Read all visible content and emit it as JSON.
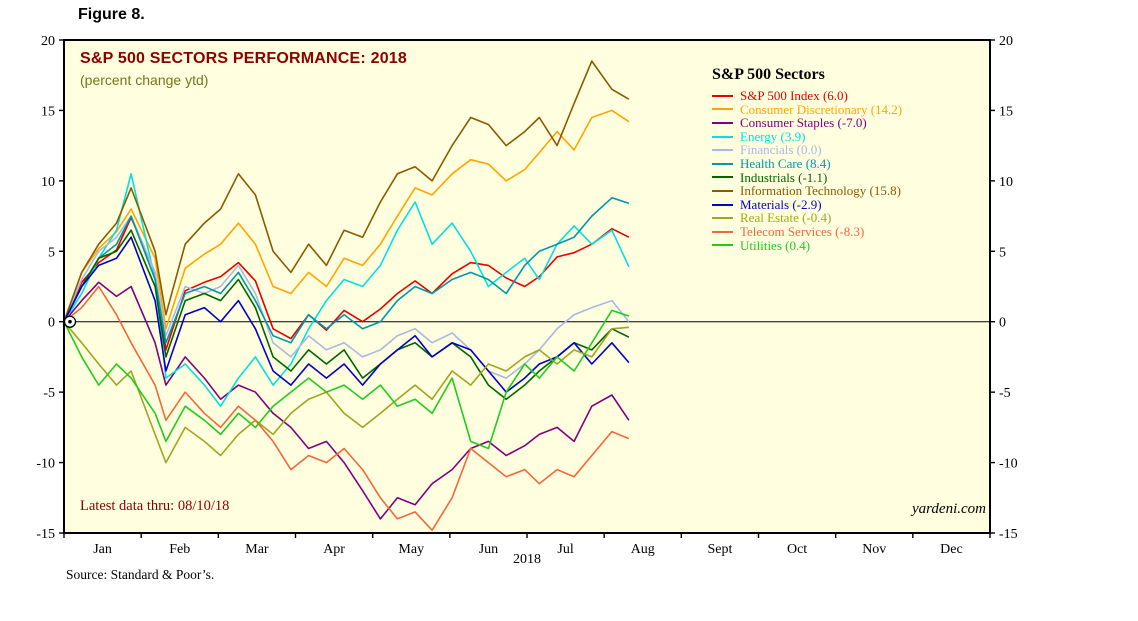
{
  "figure": {
    "label": "Figure 8."
  },
  "annotations": {
    "latest_data": "Latest data thru: 08/10/18",
    "watermark": "yardeni.com"
  },
  "source": {
    "text": "Source: Standard & Poor’s."
  },
  "colors": {
    "title": "#8B0000",
    "subtitle": "#76761A",
    "latest_data": "#8B0000",
    "plot_bg": "#FFFFDF"
  },
  "chart_data": {
    "type": "line",
    "title": "S&P 500 SECTORS PERFORMANCE: 2018",
    "subtitle": "(percent change ytd)",
    "legend_title": "S&P 500 Sectors",
    "x_axis_year": "2018",
    "ylim": [
      -15,
      20
    ],
    "yticks": [
      -15,
      -10,
      -5,
      0,
      5,
      10,
      15,
      20
    ],
    "x_months": [
      "Jan",
      "Feb",
      "Mar",
      "Apr",
      "May",
      "Jun",
      "Jul",
      "Aug",
      "Sept",
      "Oct",
      "Nov",
      "Dec"
    ],
    "x_range_months": [
      0,
      12
    ],
    "x": [
      0,
      0.23,
      0.45,
      0.68,
      0.87,
      1.18,
      1.32,
      1.57,
      1.82,
      2.03,
      2.26,
      2.48,
      2.71,
      2.94,
      3.17,
      3.4,
      3.63,
      3.87,
      4.1,
      4.32,
      4.55,
      4.77,
      5.03,
      5.27,
      5.5,
      5.73,
      5.97,
      6.16,
      6.39,
      6.61,
      6.84,
      7.1,
      7.32
    ],
    "series": [
      {
        "id": "sp500-index",
        "name": "S&P 500 Index",
        "label": "S&P 500 Index (6.0)",
        "final": 6.0,
        "color": "#E60000",
        "values": [
          0,
          2.8,
          4.2,
          5.1,
          7.4,
          3.5,
          -2.0,
          2.2,
          2.8,
          3.2,
          4.2,
          2.9,
          -0.5,
          -1.2,
          0.5,
          -0.6,
          0.8,
          0.0,
          0.9,
          2.0,
          2.9,
          2.0,
          3.4,
          4.2,
          4.0,
          3.1,
          2.5,
          3.2,
          4.6,
          4.9,
          5.5,
          6.6,
          6.0
        ]
      },
      {
        "id": "consumer-discretionary",
        "name": "Consumer Discretionary",
        "label": "Consumer Discretionary (14.2)",
        "final": 14.2,
        "color": "#FFA500",
        "values": [
          0,
          3.5,
          5.2,
          6.4,
          8.0,
          4.5,
          -0.5,
          3.8,
          4.8,
          5.5,
          7.0,
          5.5,
          2.5,
          2.0,
          3.5,
          2.5,
          4.5,
          4.0,
          5.5,
          7.5,
          9.5,
          9.0,
          10.5,
          11.5,
          11.2,
          10.0,
          10.8,
          12.0,
          13.5,
          12.2,
          14.5,
          15.0,
          14.2
        ]
      },
      {
        "id": "consumer-staples",
        "name": "Consumer Staples",
        "label": "Consumer Staples (-7.0)",
        "final": -7.0,
        "color": "#800080",
        "values": [
          0,
          1.5,
          2.8,
          1.8,
          2.5,
          -1.5,
          -4.5,
          -2.5,
          -4.0,
          -5.5,
          -4.5,
          -5.0,
          -6.5,
          -7.5,
          -9.0,
          -8.5,
          -10.0,
          -12.0,
          -14.0,
          -12.5,
          -13.0,
          -11.5,
          -10.5,
          -9.0,
          -8.5,
          -9.5,
          -8.8,
          -8.0,
          -7.5,
          -8.5,
          -6.0,
          -5.2,
          -7.0
        ]
      },
      {
        "id": "energy",
        "name": "Energy",
        "label": "Energy (3.9)",
        "final": 3.9,
        "color": "#00E0E0",
        "values": [
          0,
          2.0,
          4.5,
          6.5,
          10.5,
          3.0,
          -4.0,
          -3.0,
          -4.5,
          -6.0,
          -4.0,
          -2.5,
          -4.5,
          -3.0,
          -0.5,
          1.5,
          3.0,
          2.5,
          4.0,
          6.5,
          8.5,
          5.5,
          7.0,
          5.0,
          2.5,
          3.5,
          4.5,
          3.0,
          5.5,
          6.8,
          5.5,
          6.5,
          3.9
        ]
      },
      {
        "id": "financials",
        "name": "Financials",
        "label": "Financials (0.0)",
        "final": 0.0,
        "color": "#A9B8E6",
        "values": [
          0,
          3.0,
          5.0,
          6.0,
          7.5,
          3.5,
          -1.0,
          2.5,
          2.0,
          2.5,
          4.0,
          2.0,
          -1.5,
          -2.5,
          -1.0,
          -2.0,
          -1.5,
          -2.5,
          -2.0,
          -1.0,
          -0.5,
          -1.5,
          -0.8,
          -2.0,
          -3.5,
          -4.0,
          -3.0,
          -2.0,
          -0.5,
          0.5,
          1.0,
          1.5,
          0.0
        ]
      },
      {
        "id": "health-care",
        "name": "Health Care",
        "label": "Health Care (8.4)",
        "final": 8.4,
        "color": "#0097AB",
        "values": [
          0,
          2.5,
          4.5,
          5.5,
          7.5,
          3.0,
          -1.5,
          2.0,
          2.5,
          2.0,
          3.5,
          1.5,
          -1.0,
          -1.5,
          0.5,
          -0.5,
          0.5,
          -0.5,
          0.0,
          1.5,
          2.5,
          2.0,
          3.0,
          3.5,
          3.0,
          2.0,
          4.0,
          5.0,
          5.5,
          6.0,
          7.5,
          8.8,
          8.4
        ]
      },
      {
        "id": "industrials",
        "name": "Industrials",
        "label": "Industrials (-1.1)",
        "final": -1.1,
        "color": "#006400",
        "values": [
          0,
          2.5,
          4.5,
          5.0,
          6.5,
          2.5,
          -2.5,
          1.5,
          2.0,
          1.5,
          3.0,
          1.0,
          -2.5,
          -3.5,
          -2.0,
          -3.0,
          -2.0,
          -4.0,
          -3.0,
          -2.0,
          -1.5,
          -2.5,
          -1.5,
          -2.5,
          -4.5,
          -5.5,
          -4.5,
          -3.5,
          -2.5,
          -1.5,
          -2.0,
          -0.5,
          -1.1
        ]
      },
      {
        "id": "information-technology",
        "name": "Information Technology",
        "label": "Information Technology (15.8)",
        "final": 15.8,
        "color": "#8B5A00",
        "values": [
          0,
          3.5,
          5.5,
          7.0,
          9.5,
          5.0,
          0.5,
          5.5,
          7.0,
          8.0,
          10.5,
          9.0,
          5.0,
          3.5,
          5.5,
          4.0,
          6.5,
          6.0,
          8.5,
          10.5,
          11.0,
          10.0,
          12.5,
          14.5,
          14.0,
          12.5,
          13.5,
          14.5,
          12.5,
          15.5,
          18.5,
          16.5,
          15.8
        ]
      },
      {
        "id": "materials",
        "name": "Materials",
        "label": "Materials (-2.9)",
        "final": -2.9,
        "color": "#0000CC",
        "values": [
          0,
          2.5,
          4.0,
          4.5,
          6.0,
          1.5,
          -3.5,
          0.5,
          1.0,
          0.0,
          1.5,
          -0.5,
          -3.5,
          -4.5,
          -3.0,
          -4.0,
          -3.0,
          -4.5,
          -3.0,
          -2.0,
          -1.0,
          -2.5,
          -1.5,
          -2.0,
          -3.5,
          -5.0,
          -4.0,
          -3.0,
          -2.5,
          -1.5,
          -3.0,
          -1.5,
          -2.9
        ]
      },
      {
        "id": "real-estate",
        "name": "Real Estate",
        "label": "Real Estate (-0.4)",
        "final": -0.4,
        "color": "#A2A420",
        "values": [
          0,
          -1.5,
          -3.0,
          -4.5,
          -3.5,
          -8.0,
          -10.0,
          -7.5,
          -8.5,
          -9.5,
          -8.0,
          -7.0,
          -8.0,
          -6.5,
          -5.5,
          -5.0,
          -6.5,
          -7.5,
          -6.5,
          -5.5,
          -4.5,
          -5.5,
          -3.5,
          -4.5,
          -3.0,
          -3.5,
          -2.5,
          -2.0,
          -3.0,
          -2.0,
          -2.5,
          -0.5,
          -0.4
        ]
      },
      {
        "id": "telecom-services",
        "name": "Telecom Services",
        "label": "Telecom Services (-8.3)",
        "final": -8.3,
        "color": "#F2683C",
        "values": [
          0,
          1.0,
          2.5,
          0.5,
          -1.5,
          -4.5,
          -7.0,
          -5.0,
          -6.5,
          -7.5,
          -6.0,
          -7.0,
          -8.5,
          -10.5,
          -9.5,
          -10.0,
          -9.0,
          -10.5,
          -12.5,
          -14.0,
          -13.5,
          -14.8,
          -12.5,
          -9.0,
          -10.0,
          -11.0,
          -10.5,
          -11.5,
          -10.5,
          -11.0,
          -9.5,
          -7.8,
          -8.3
        ]
      },
      {
        "id": "utilities",
        "name": "Utilities",
        "label": "Utilities (0.4)",
        "final": 0.4,
        "color": "#20CC20",
        "values": [
          0,
          -2.5,
          -4.5,
          -3.0,
          -4.0,
          -6.5,
          -8.5,
          -6.0,
          -7.0,
          -8.0,
          -6.5,
          -7.5,
          -6.0,
          -5.0,
          -4.0,
          -5.0,
          -4.5,
          -5.5,
          -4.5,
          -6.0,
          -5.5,
          -6.5,
          -4.0,
          -8.5,
          -9.0,
          -5.0,
          -3.0,
          -4.0,
          -2.5,
          -3.5,
          -1.5,
          0.8,
          0.4
        ]
      }
    ]
  }
}
